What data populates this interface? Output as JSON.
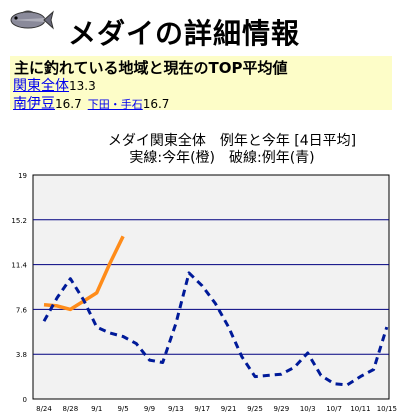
{
  "page": {
    "title": "メダイの詳細情報"
  },
  "icons": {
    "fish": "fish-icon"
  },
  "info": {
    "heading": "主に釣れている地域と現在のTOP平均値",
    "row1": {
      "link": "関東全体",
      "value": "13.3"
    },
    "row2": {
      "link": "南伊豆",
      "value": "16.7",
      "sublink": "下田・手石",
      "subvalue": "16.7"
    }
  },
  "colors": {
    "this_year": "#ff8c1a",
    "avg_year": "#001a99",
    "grid": "#000080",
    "plot_bg": "#f2f2f2",
    "info_bg": "#fdfdc8"
  },
  "chart_data": {
    "type": "line",
    "title": "メダイ関東全体　例年と今年 [4日平均]",
    "subtitle": "実線:今年(橙)　破線:例年(青)",
    "categories": [
      "8/24",
      "8/28",
      "9/1",
      "9/5",
      "9/9",
      "9/13",
      "9/17",
      "9/21",
      "9/25",
      "9/29",
      "10/3",
      "10/7",
      "10/11",
      "10/15"
    ],
    "yticks": [
      "19",
      "15.2",
      "11.4",
      "7.6",
      "3.8",
      "0"
    ],
    "ylim": [
      0,
      19
    ],
    "grid": true,
    "series": [
      {
        "style": "solid",
        "color": "#ff8c1a",
        "x": [
          0,
          0.5,
          1,
          1.5,
          2,
          2.5,
          3
        ],
        "y": [
          8.0,
          7.9,
          7.6,
          8.3,
          9.0,
          11.5,
          13.8
        ]
      },
      {
        "style": "dashed",
        "color": "#001a99",
        "x": [
          0,
          0.5,
          1,
          1.5,
          2,
          2.5,
          3,
          3.5,
          4,
          4.5,
          5,
          5.5,
          6,
          6.5,
          7,
          7.5,
          8,
          8.5,
          9,
          9.5,
          10,
          10.5,
          11,
          11.5,
          12,
          12.5,
          13
        ],
        "y": [
          6.6,
          8.6,
          10.2,
          8.4,
          6.1,
          5.6,
          5.3,
          4.7,
          3.3,
          3.1,
          6.4,
          10.7,
          9.6,
          8.1,
          6.1,
          3.6,
          1.9,
          2.0,
          2.1,
          2.7,
          3.9,
          2.0,
          1.3,
          1.2,
          1.9,
          2.5,
          6.1
        ]
      }
    ]
  }
}
